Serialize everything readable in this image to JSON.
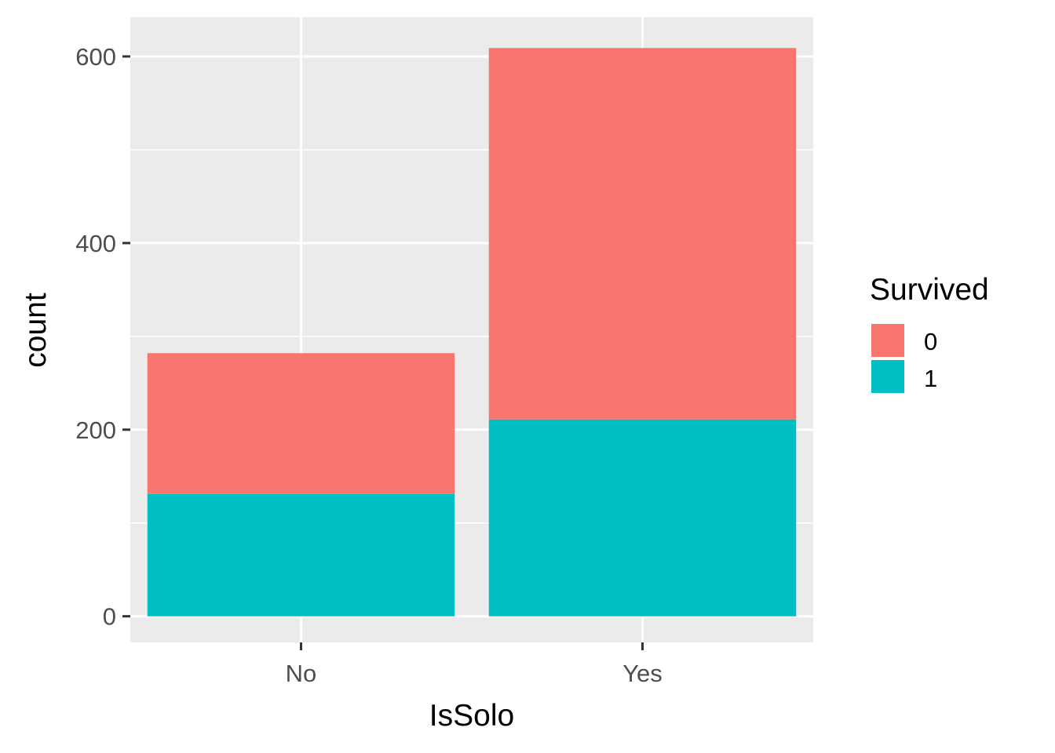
{
  "chart_data": {
    "type": "bar",
    "stacked": true,
    "xlabel": "IsSolo",
    "ylabel": "count",
    "categories": [
      "No",
      "Yes"
    ],
    "series": [
      {
        "name": "0",
        "values": [
          151,
          398
        ],
        "color": "#F8766D"
      },
      {
        "name": "1",
        "values": [
          131,
          211
        ],
        "color": "#00BFC4"
      }
    ],
    "ylim": [
      -28,
      642
    ],
    "yticks": [
      0,
      200,
      400,
      600
    ],
    "ytick_labels": [
      "0",
      "200",
      "400",
      "600"
    ],
    "grid": true,
    "legend": {
      "title": "Survived",
      "placement": "right"
    },
    "colors": {
      "panel": "#EBEBEB",
      "grid": "#FFFFFF",
      "tick": "#333333"
    }
  }
}
